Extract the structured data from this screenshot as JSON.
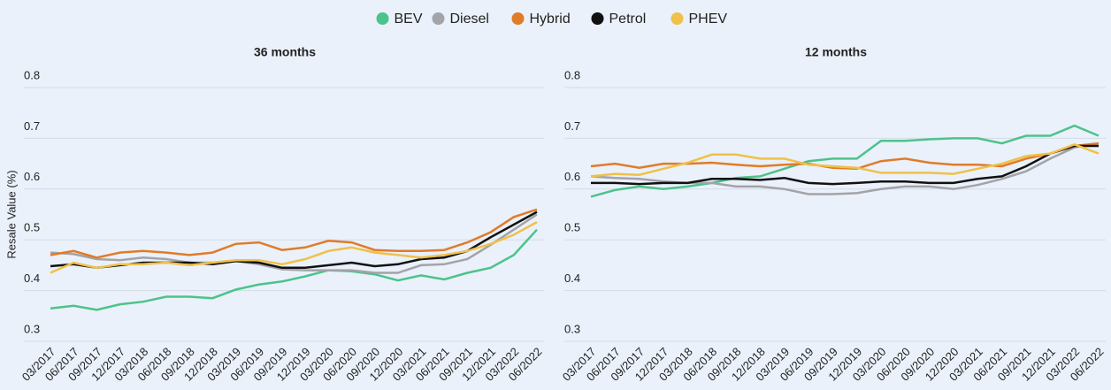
{
  "chart_data": [
    {
      "type": "line",
      "title": "36 months",
      "y_label": "Resale Value (%)",
      "categories": [
        "03/2017",
        "06/2017",
        "09/2017",
        "12/2017",
        "03/2018",
        "06/2018",
        "09/2018",
        "12/2018",
        "03/2019",
        "06/2019",
        "09/2019",
        "12/2019",
        "03/2020",
        "06/2020",
        "09/2020",
        "12/2020",
        "03/2021",
        "06/2021",
        "09/2021",
        "12/2021",
        "03/2022",
        "06/2022"
      ],
      "ylim": [
        0.3,
        0.8
      ],
      "yticks": [
        0.3,
        0.4,
        0.5,
        0.6,
        0.7,
        0.8
      ],
      "grid": true,
      "series": [
        {
          "name": "BEV",
          "color": "#4cc38a",
          "values": [
            0.365,
            0.37,
            0.362,
            0.373,
            0.378,
            0.388,
            0.388,
            0.385,
            0.402,
            0.412,
            0.418,
            0.428,
            0.44,
            0.438,
            0.432,
            0.42,
            0.43,
            0.422,
            0.435,
            0.445,
            0.47,
            0.52
          ]
        },
        {
          "name": "Diesel",
          "color": "#a3a3a8",
          "values": [
            0.475,
            0.472,
            0.462,
            0.46,
            0.465,
            0.462,
            0.455,
            0.455,
            0.458,
            0.452,
            0.442,
            0.44,
            0.44,
            0.44,
            0.435,
            0.435,
            0.45,
            0.452,
            0.462,
            0.49,
            0.52,
            0.55
          ]
        },
        {
          "name": "Hybrid",
          "color": "#e07b2a",
          "values": [
            0.47,
            0.478,
            0.465,
            0.475,
            0.478,
            0.475,
            0.47,
            0.475,
            0.492,
            0.495,
            0.48,
            0.485,
            0.498,
            0.495,
            0.48,
            0.478,
            0.478,
            0.48,
            0.495,
            0.515,
            0.545,
            0.56
          ]
        },
        {
          "name": "Petrol",
          "color": "#111111",
          "values": [
            0.448,
            0.452,
            0.445,
            0.45,
            0.455,
            0.455,
            0.455,
            0.452,
            0.458,
            0.455,
            0.445,
            0.445,
            0.45,
            0.455,
            0.448,
            0.452,
            0.462,
            0.465,
            0.478,
            0.505,
            0.53,
            0.555
          ]
        },
        {
          "name": "PHEV",
          "color": "#f0c04a",
          "values": [
            0.435,
            0.455,
            0.445,
            0.452,
            0.452,
            0.455,
            0.45,
            0.455,
            0.46,
            0.46,
            0.452,
            0.462,
            0.478,
            0.485,
            0.475,
            0.47,
            0.465,
            0.47,
            0.478,
            0.492,
            0.51,
            0.535
          ]
        }
      ]
    },
    {
      "type": "line",
      "title": "12 months",
      "categories": [
        "03/2017",
        "06/2017",
        "09/2017",
        "12/2017",
        "03/2018",
        "06/2018",
        "09/2018",
        "12/2018",
        "03/2019",
        "06/2019",
        "09/2019",
        "12/2019",
        "03/2020",
        "06/2020",
        "09/2020",
        "12/2020",
        "03/2021",
        "06/2021",
        "09/2021",
        "12/2021",
        "03/2022",
        "06/2022"
      ],
      "ylim": [
        0.3,
        0.8
      ],
      "yticks": [
        0.3,
        0.4,
        0.5,
        0.6,
        0.7,
        0.8
      ],
      "grid": true,
      "series": [
        {
          "color": "#4cc38a",
          "values": [
            0.585,
            0.598,
            0.605,
            0.6,
            0.605,
            0.612,
            0.622,
            0.625,
            0.64,
            0.655,
            0.66,
            0.66,
            0.695,
            0.695,
            0.698,
            0.7,
            0.7,
            0.69,
            0.705,
            0.705,
            0.725,
            0.705
          ]
        },
        {
          "color": "#a3a3a8",
          "values": [
            0.625,
            0.622,
            0.62,
            0.615,
            0.612,
            0.612,
            0.605,
            0.605,
            0.6,
            0.59,
            0.59,
            0.592,
            0.6,
            0.605,
            0.605,
            0.6,
            0.608,
            0.62,
            0.635,
            0.66,
            0.682,
            0.69
          ]
        },
        {
          "color": "#e07b2a",
          "values": [
            0.645,
            0.65,
            0.642,
            0.65,
            0.65,
            0.652,
            0.648,
            0.645,
            0.648,
            0.65,
            0.642,
            0.64,
            0.655,
            0.66,
            0.652,
            0.648,
            0.648,
            0.645,
            0.66,
            0.67,
            0.685,
            0.69
          ]
        },
        {
          "color": "#111111",
          "values": [
            0.612,
            0.612,
            0.61,
            0.612,
            0.612,
            0.62,
            0.62,
            0.618,
            0.622,
            0.612,
            0.61,
            0.612,
            0.615,
            0.615,
            0.612,
            0.612,
            0.62,
            0.625,
            0.645,
            0.67,
            0.685,
            0.685
          ]
        },
        {
          "color": "#f0c04a",
          "values": [
            0.625,
            0.63,
            0.628,
            0.64,
            0.652,
            0.668,
            0.668,
            0.66,
            0.66,
            0.648,
            0.645,
            0.642,
            0.632,
            0.632,
            0.632,
            0.63,
            0.64,
            0.65,
            0.665,
            0.67,
            0.688,
            0.67
          ]
        }
      ]
    }
  ]
}
